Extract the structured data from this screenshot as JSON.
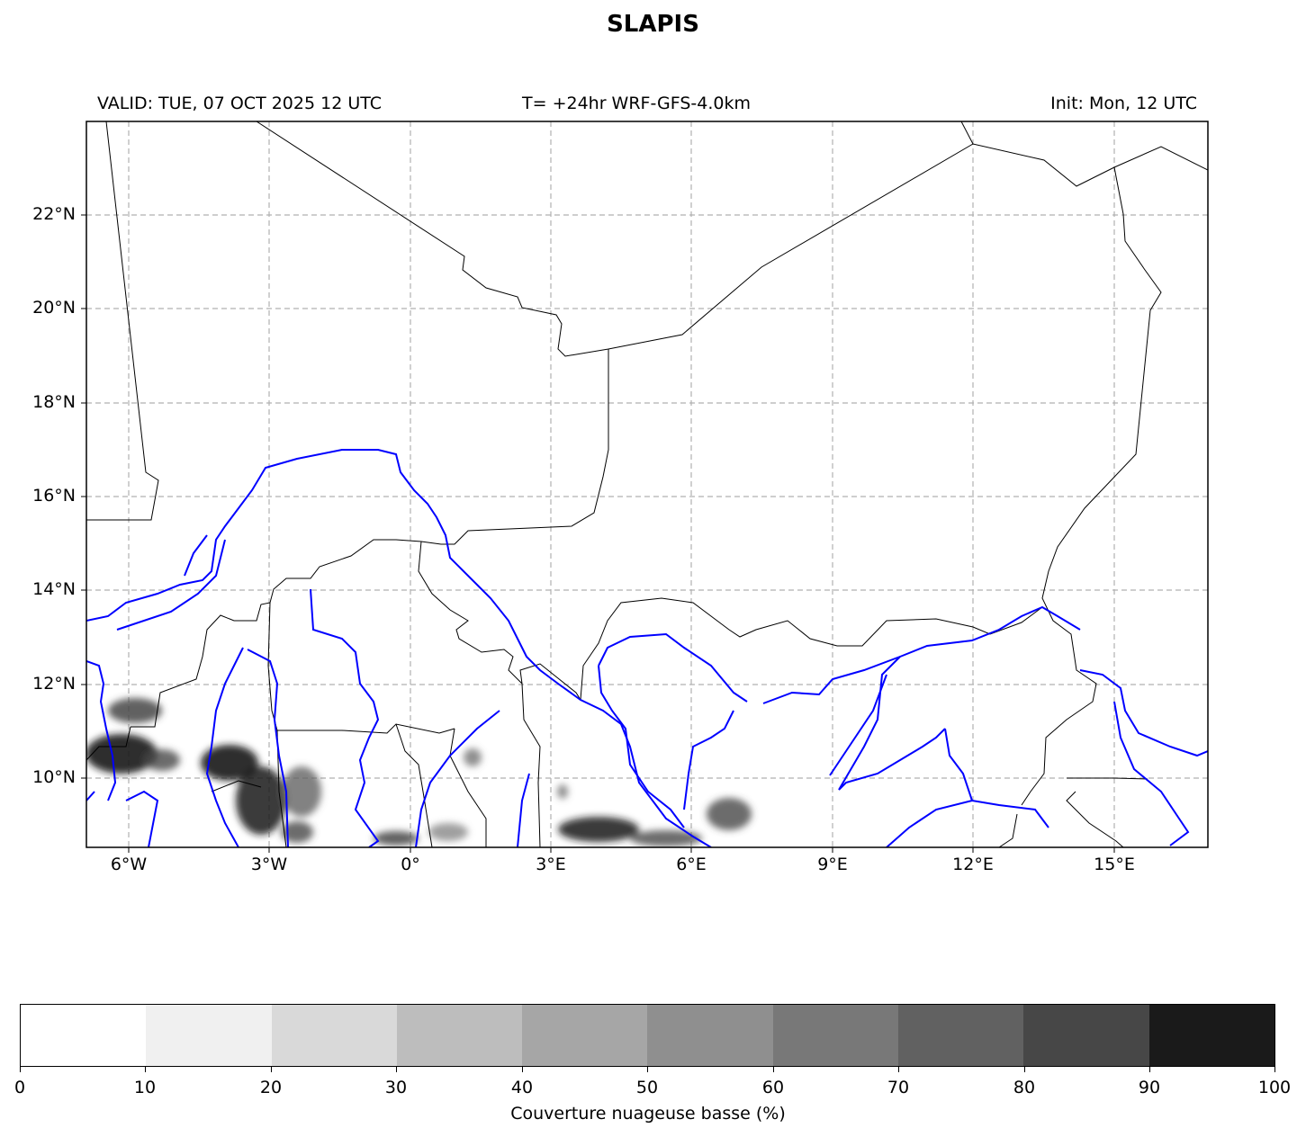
{
  "title": "SLAPIS",
  "header": {
    "valid": "VALID: TUE, 07 OCT 2025 12 UTC",
    "forecast": "T= +24hr WRF-GFS-4.0km",
    "init": "Init: Mon, 12 UTC"
  },
  "map": {
    "lon_range": [
      -7.15,
      16.85
    ],
    "lat_range": [
      8.45,
      24.0
    ],
    "lat_ticks": [
      "22°N",
      "20°N",
      "18°N",
      "16°N",
      "14°N",
      "12°N",
      "10°N"
    ],
    "lon_ticks": [
      "6°W",
      "3°W",
      "0°",
      "3°E",
      "6°E",
      "9°E",
      "12°E",
      "15°E"
    ],
    "gridlines": true,
    "border_color": "#000000",
    "river_color": "#0000ff"
  },
  "colorbar": {
    "label": "Couverture nuageuse basse (%)",
    "ticks": [
      "0",
      "10",
      "20",
      "30",
      "40",
      "50",
      "60",
      "70",
      "80",
      "90",
      "100"
    ],
    "colors": [
      "#ffffff",
      "#f0f0f0",
      "#d9d9d9",
      "#bdbdbd",
      "#a6a6a6",
      "#8f8f8f",
      "#787878",
      "#616161",
      "#474747",
      "#1a1a1a"
    ]
  }
}
